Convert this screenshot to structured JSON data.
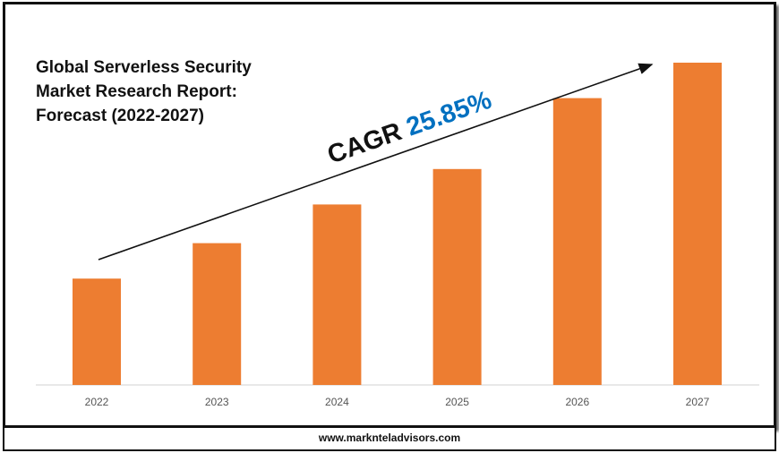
{
  "chart_data": {
    "type": "bar",
    "title": "Global Serverless Security\nMarket Research Report:\nForecast (2022-2027)",
    "categories": [
      "2022",
      "2023",
      "2024",
      "2025",
      "2026",
      "2027"
    ],
    "values": [
      0.33,
      0.44,
      0.56,
      0.67,
      0.89,
      1.0
    ],
    "ylim": [
      0,
      1
    ],
    "y_axis_shown": false,
    "grid": false,
    "bar_color": "#ED7D31",
    "annotation": {
      "label": "CAGR",
      "value": "25.85%",
      "value_color": "#0070C0",
      "arrow": "trend-up"
    }
  },
  "footer": {
    "website": "www.marknteladvisors.com"
  }
}
